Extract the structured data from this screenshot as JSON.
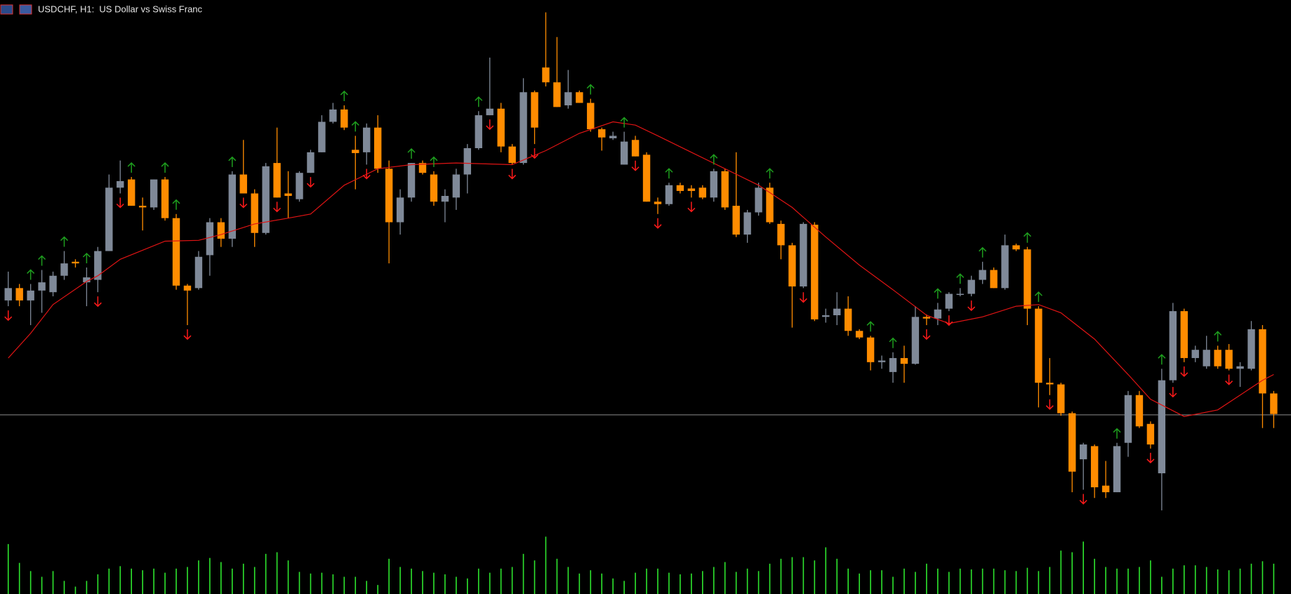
{
  "chart_data": {
    "type": "candlestick",
    "title": "USDCHF, H1:  US Dollar vs Swiss Franc",
    "open": [
      635,
      650,
      635,
      647,
      645,
      665,
      682,
      657,
      660,
      695,
      772,
      782,
      750,
      748,
      782,
      735,
      653,
      650,
      690,
      730,
      710,
      788,
      765,
      717,
      802,
      765,
      758,
      790,
      815,
      852,
      867,
      818,
      815,
      845,
      795,
      730,
      760,
      802,
      788,
      755,
      760,
      788,
      820,
      860,
      868,
      822,
      802,
      888,
      918,
      900,
      872,
      888,
      875,
      843,
      832,
      800,
      830,
      812,
      755,
      752,
      775,
      771,
      772,
      760,
      792,
      750,
      715,
      742,
      772,
      728,
      702,
      652,
      727,
      615,
      617,
      625,
      598,
      590,
      560,
      548,
      565,
      558,
      615,
      613,
      625,
      642,
      643,
      660,
      672,
      650,
      702,
      697,
      625,
      535,
      533,
      498,
      442,
      458,
      410,
      402,
      462,
      520,
      485,
      425,
      538,
      622,
      565,
      555,
      575,
      575,
      552,
      552,
      600,
      522
    ],
    "high": [
      670,
      655,
      655,
      672,
      670,
      695,
      685,
      675,
      700,
      788,
      805,
      785,
      760,
      782,
      785,
      740,
      655,
      695,
      735,
      735,
      792,
      830,
      770,
      802,
      845,
      792,
      792,
      818,
      860,
      875,
      872,
      835,
      850,
      860,
      805,
      770,
      802,
      805,
      792,
      770,
      795,
      825,
      865,
      930,
      875,
      825,
      905,
      890,
      985,
      955,
      915,
      890,
      880,
      845,
      840,
      840,
      835,
      815,
      760,
      778,
      778,
      775,
      775,
      795,
      795,
      815,
      745,
      778,
      778,
      732,
      705,
      730,
      730,
      625,
      645,
      640,
      600,
      592,
      568,
      572,
      580,
      628,
      618,
      632,
      645,
      650,
      665,
      682,
      675,
      715,
      704,
      700,
      628,
      565,
      535,
      500,
      462,
      460,
      440,
      462,
      525,
      525,
      488,
      552,
      632,
      625,
      580,
      592,
      580,
      582,
      560,
      610,
      605,
      525
    ],
    "low": [
      628,
      628,
      605,
      620,
      640,
      660,
      675,
      628,
      645,
      695,
      765,
      750,
      720,
      745,
      732,
      648,
      605,
      648,
      665,
      700,
      700,
      765,
      700,
      715,
      760,
      735,
      755,
      790,
      815,
      850,
      842,
      770,
      800,
      790,
      680,
      715,
      755,
      788,
      750,
      730,
      745,
      765,
      818,
      860,
      815,
      800,
      800,
      825,
      895,
      870,
      868,
      875,
      840,
      817,
      830,
      800,
      810,
      755,
      740,
      750,
      765,
      760,
      758,
      755,
      745,
      712,
      705,
      738,
      728,
      685,
      602,
      650,
      610,
      608,
      605,
      592,
      588,
      550,
      552,
      535,
      535,
      557,
      605,
      605,
      622,
      640,
      640,
      655,
      650,
      648,
      695,
      605,
      505,
      520,
      495,
      402,
      405,
      395,
      395,
      402,
      445,
      480,
      455,
      380,
      535,
      560,
      560,
      552,
      552,
      550,
      530,
      550,
      480,
      480
    ],
    "close": [
      650,
      635,
      647,
      657,
      665,
      680,
      680,
      663,
      695,
      772,
      780,
      750,
      748,
      782,
      735,
      653,
      647,
      688,
      730,
      710,
      788,
      765,
      717,
      798,
      760,
      762,
      790,
      815,
      852,
      867,
      845,
      814,
      845,
      795,
      730,
      760,
      802,
      790,
      755,
      762,
      788,
      820,
      860,
      868,
      822,
      802,
      888,
      845,
      900,
      870,
      888,
      875,
      843,
      833,
      835,
      828,
      810,
      755,
      752,
      775,
      768,
      768,
      760,
      792,
      748,
      715,
      742,
      772,
      730,
      702,
      652,
      728,
      612,
      617,
      625,
      598,
      590,
      560,
      562,
      565,
      558,
      615,
      613,
      624,
      643,
      643,
      660,
      672,
      650,
      702,
      697,
      625,
      535,
      533,
      498,
      427,
      460,
      408,
      402,
      458,
      520,
      482,
      460,
      538,
      622,
      565,
      575,
      575,
      555,
      552,
      555,
      600,
      522,
      497
    ],
    "up_color": "#7f8998",
    "down_color": "#ff8c00",
    "ylim": [
      350,
      1000
    ],
    "ma": {
      "color": "#e01414",
      "x": [
        0,
        2,
        4,
        7,
        8,
        10,
        14,
        17,
        19,
        22,
        25,
        27,
        30,
        33,
        36,
        40,
        45,
        48,
        51,
        54,
        56,
        58,
        61,
        64,
        67,
        70,
        73,
        76,
        79,
        82,
        84,
        87,
        90,
        92,
        94,
        97,
        100,
        102,
        105,
        108,
        110,
        112,
        113
      ],
      "values": [
        565,
        595,
        630,
        658,
        665,
        685,
        707,
        708,
        715,
        728,
        735,
        740,
        775,
        795,
        800,
        802,
        800,
        817,
        838,
        852,
        848,
        835,
        815,
        795,
        775,
        748,
        712,
        678,
        648,
        617,
        607,
        615,
        628,
        630,
        620,
        588,
        545,
        515,
        494,
        502,
        520,
        538,
        545
      ]
    },
    "buy_signals": {
      "color": "#1e9e1e",
      "indices": [
        2,
        3,
        5,
        7,
        11,
        14,
        15,
        20,
        30,
        31,
        36,
        38,
        42,
        52,
        55,
        59,
        63,
        68,
        77,
        79,
        83,
        85,
        87,
        91,
        92,
        99,
        103,
        108
      ]
    },
    "sell_signals": {
      "color": "#ff1a1a",
      "indices": [
        0,
        8,
        10,
        16,
        21,
        24,
        27,
        32,
        43,
        45,
        47,
        56,
        58,
        61,
        71,
        82,
        84,
        86,
        93,
        96,
        102,
        104,
        105,
        109
      ]
    },
    "price_line": {
      "value": 496,
      "color": "#8c8c8c"
    },
    "volume": {
      "color": "#2ee62e",
      "ylim": [
        0,
        72
      ],
      "values": [
        61,
        38,
        28,
        21,
        28,
        16,
        9,
        16,
        24,
        31,
        34,
        31,
        29,
        31,
        26,
        31,
        33,
        41,
        44,
        39,
        31,
        37,
        33,
        49,
        51,
        41,
        27,
        25,
        26,
        24,
        21,
        21,
        16,
        11,
        43,
        33,
        31,
        28,
        26,
        24,
        21,
        19,
        31,
        26,
        31,
        33,
        49,
        41,
        70,
        43,
        33,
        25,
        29,
        25,
        19,
        16,
        26,
        31,
        31,
        26,
        24,
        25,
        28,
        33,
        39,
        27,
        31,
        28,
        37,
        43,
        45,
        45,
        41,
        57,
        43,
        31,
        25,
        29,
        29,
        21,
        31,
        27,
        37,
        31,
        27,
        31,
        30,
        31,
        31,
        29,
        28,
        32,
        28,
        33,
        53,
        51,
        64,
        43,
        33,
        31,
        31,
        33,
        41,
        21,
        31,
        35,
        35,
        33,
        30,
        29,
        31,
        37,
        40,
        37
      ]
    }
  }
}
